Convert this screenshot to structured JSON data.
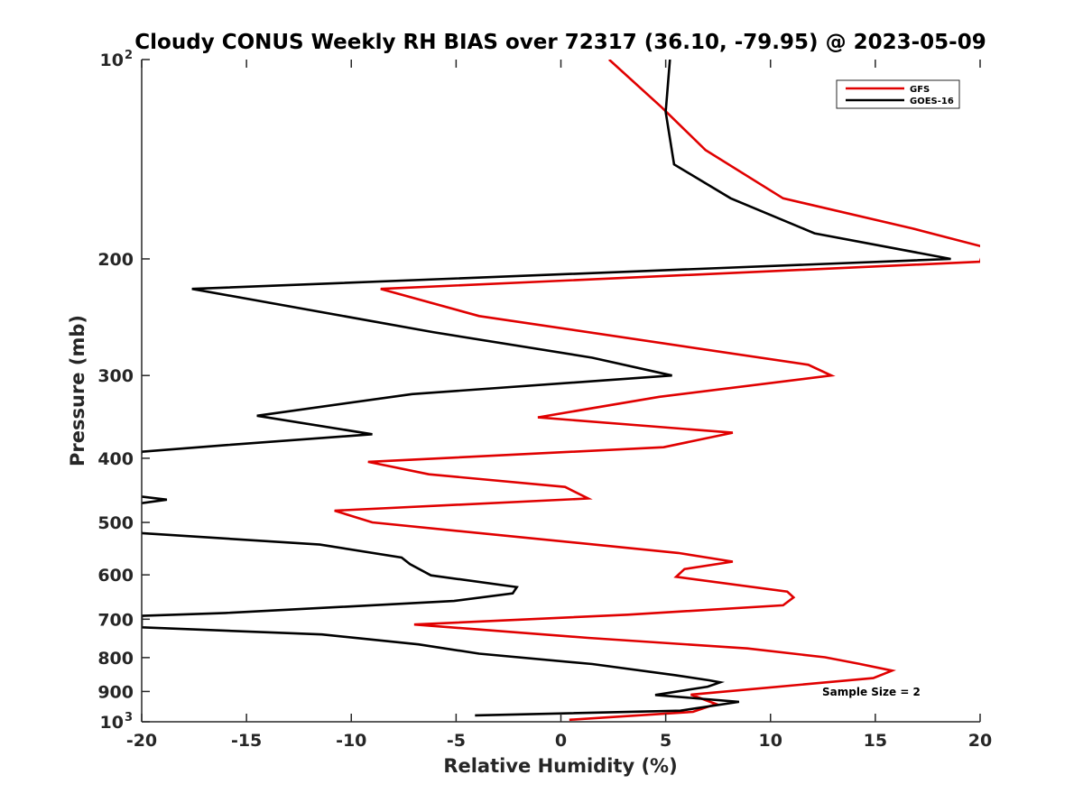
{
  "chart_data": {
    "type": "line",
    "title": "Cloudy CONUS Weekly RH BIAS over 72317 (36.10, -79.95) @ 2023-05-09",
    "xlabel": "Relative Humidity (%)",
    "ylabel": "Pressure (mb)",
    "xlim": [
      -20,
      20
    ],
    "ylim": [
      100,
      1000
    ],
    "y_scale": "log",
    "y_reversed": true,
    "x_ticks": [
      -20,
      -15,
      -10,
      -5,
      0,
      5,
      10,
      15,
      20
    ],
    "x_tick_labels": [
      "-20",
      "-15",
      "-10",
      "-5",
      "0",
      "5",
      "10",
      "15",
      "20"
    ],
    "y_ticks": [
      {
        "value": 100,
        "base": "10",
        "exp": "2"
      },
      {
        "value": 200,
        "label": "200"
      },
      {
        "value": 300,
        "label": "300"
      },
      {
        "value": 400,
        "label": "400"
      },
      {
        "value": 500,
        "label": "500"
      },
      {
        "value": 600,
        "label": "600"
      },
      {
        "value": 700,
        "label": "700"
      },
      {
        "value": 800,
        "label": "800"
      },
      {
        "value": 900,
        "label": "900"
      },
      {
        "value": 1000,
        "base": "10",
        "exp": "3"
      }
    ],
    "grid": false,
    "legend_position": "top-right",
    "annotation": "Sample Size = 2",
    "series": [
      {
        "name": "GFS",
        "color": "#e00000",
        "points": [
          [
            2.3,
            100
          ],
          [
            4.8,
            118
          ],
          [
            6.9,
            137
          ],
          [
            10.6,
            162
          ],
          [
            16.8,
            180
          ],
          [
            20.2,
            192
          ],
          [
            20.0,
            202
          ],
          [
            -8.6,
            222
          ],
          [
            -3.9,
            244
          ],
          [
            11.8,
            289
          ],
          [
            12.9,
            300
          ],
          [
            4.7,
            323
          ],
          [
            -1.1,
            347
          ],
          [
            8.2,
            366
          ],
          [
            4.9,
            385
          ],
          [
            -9.2,
            405
          ],
          [
            -6.3,
            423
          ],
          [
            0.2,
            442
          ],
          [
            1.3,
            460
          ],
          [
            -10.8,
            480
          ],
          [
            -9.0,
            500
          ],
          [
            5.6,
            556
          ],
          [
            8.2,
            573
          ],
          [
            5.9,
            588
          ],
          [
            5.5,
            604
          ],
          [
            10.8,
            636
          ],
          [
            11.1,
            649
          ],
          [
            10.6,
            667
          ],
          [
            3.2,
            689
          ],
          [
            -7.0,
            713
          ],
          [
            1.3,
            747
          ],
          [
            8.9,
            775
          ],
          [
            12.6,
            799
          ],
          [
            14.2,
            817
          ],
          [
            15.8,
            837
          ],
          [
            14.9,
            859
          ],
          [
            6.2,
            910
          ],
          [
            7.0,
            930
          ],
          [
            7.4,
            940
          ],
          [
            6.3,
            966
          ],
          [
            0.4,
            993
          ]
        ]
      },
      {
        "name": "GOES-16",
        "color": "#000000",
        "points": [
          [
            5.2,
            100
          ],
          [
            5.0,
            120
          ],
          [
            5.4,
            144
          ],
          [
            8.1,
            162
          ],
          [
            12.1,
            183
          ],
          [
            18.6,
            200
          ],
          [
            -17.6,
            222
          ],
          [
            -6.1,
            258
          ],
          [
            1.5,
            282
          ],
          [
            5.3,
            300
          ],
          [
            -7.1,
            320
          ],
          [
            -14.5,
            345
          ],
          [
            -9.0,
            368
          ],
          [
            -15.9,
            382
          ],
          [
            -20.0,
            391
          ],
          [
            -20.5,
            455
          ],
          [
            -18.8,
            462
          ],
          [
            -20.5,
            470
          ],
          [
            -20.0,
            519
          ],
          [
            -11.5,
            540
          ],
          [
            -7.6,
            565
          ],
          [
            -7.2,
            578
          ],
          [
            -6.2,
            601
          ],
          [
            -2.1,
            626
          ],
          [
            -2.3,
            640
          ],
          [
            -5.1,
            657
          ],
          [
            -16.0,
            685
          ],
          [
            -20.0,
            692
          ],
          [
            -20.0,
            720
          ],
          [
            -11.4,
            738
          ],
          [
            -6.8,
            764
          ],
          [
            -3.9,
            789
          ],
          [
            1.5,
            818
          ],
          [
            5.4,
            850
          ],
          [
            7.1,
            866
          ],
          [
            7.6,
            872
          ],
          [
            7.0,
            885
          ],
          [
            4.5,
            911
          ],
          [
            8.5,
            933
          ],
          [
            5.7,
            962
          ],
          [
            -4.1,
            978
          ]
        ]
      }
    ]
  }
}
